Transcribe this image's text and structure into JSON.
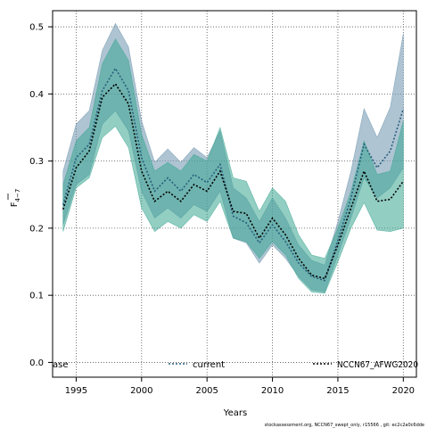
{
  "chart_data": {
    "type": "line",
    "xlabel": "Years",
    "ylabel_main": "F",
    "ylabel_sub": "4−7",
    "xlim": [
      1993.2,
      2021.0
    ],
    "ylim": [
      -0.022,
      0.524
    ],
    "xticks": [
      1995,
      2000,
      2005,
      2010,
      2015,
      2020
    ],
    "yticks": [
      0.0,
      0.1,
      0.2,
      0.3,
      0.4,
      0.5
    ],
    "xtick_labels": [
      "1995",
      "2000",
      "2005",
      "2010",
      "2015",
      "2020"
    ],
    "ytick_labels": [
      "0.0",
      "0.1",
      "0.2",
      "0.3",
      "0.4",
      "0.5"
    ],
    "grid": true,
    "legend_position": "bottom",
    "x": [
      1994,
      1995,
      1996,
      1997,
      1998,
      1999,
      2000,
      2001,
      2002,
      2003,
      2004,
      2005,
      2006,
      2007,
      2008,
      2009,
      2010,
      2011,
      2012,
      2013,
      2014,
      2015,
      2016,
      2017,
      2018,
      2019,
      2020
    ],
    "series": [
      {
        "name": "current",
        "color": "#6b93ad",
        "line_color": "#2a5e7d",
        "values": [
          0.235,
          0.305,
          0.325,
          0.405,
          0.438,
          0.405,
          0.305,
          0.255,
          0.275,
          0.255,
          0.28,
          0.268,
          0.295,
          0.218,
          0.208,
          0.178,
          0.205,
          0.18,
          0.148,
          0.128,
          0.122,
          0.182,
          0.245,
          0.325,
          0.29,
          0.315,
          0.378
        ],
        "lower": [
          0.205,
          0.265,
          0.28,
          0.355,
          0.375,
          0.345,
          0.255,
          0.215,
          0.23,
          0.215,
          0.235,
          0.225,
          0.255,
          0.185,
          0.178,
          0.148,
          0.175,
          0.155,
          0.128,
          0.108,
          0.105,
          0.16,
          0.215,
          0.275,
          0.245,
          0.26,
          0.29
        ],
        "upper": [
          0.285,
          0.355,
          0.375,
          0.465,
          0.505,
          0.47,
          0.36,
          0.298,
          0.318,
          0.298,
          0.32,
          0.305,
          0.345,
          0.26,
          0.245,
          0.21,
          0.245,
          0.215,
          0.175,
          0.152,
          0.145,
          0.21,
          0.285,
          0.378,
          0.335,
          0.38,
          0.49
        ]
      },
      {
        "name": "NCCN67_AFWG2020",
        "color": "#3aa591",
        "line_color": "#000000",
        "values": [
          0.228,
          0.29,
          0.315,
          0.395,
          0.415,
          0.385,
          0.285,
          0.24,
          0.255,
          0.24,
          0.265,
          0.255,
          0.285,
          0.225,
          0.222,
          0.185,
          0.215,
          0.19,
          0.155,
          0.13,
          0.125,
          0.175,
          0.23,
          0.285,
          0.24,
          0.243,
          0.27
        ],
        "lower": [
          0.195,
          0.26,
          0.275,
          0.335,
          0.352,
          0.32,
          0.23,
          0.195,
          0.21,
          0.2,
          0.22,
          0.21,
          0.24,
          0.185,
          0.18,
          0.155,
          0.18,
          0.16,
          0.125,
          0.105,
          0.103,
          0.15,
          0.2,
          0.238,
          0.197,
          0.195,
          0.2
        ],
        "upper": [
          0.265,
          0.33,
          0.35,
          0.445,
          0.482,
          0.45,
          0.34,
          0.285,
          0.298,
          0.285,
          0.31,
          0.3,
          0.35,
          0.275,
          0.27,
          0.225,
          0.26,
          0.24,
          0.19,
          0.16,
          0.155,
          0.2,
          0.255,
          0.33,
          0.28,
          0.285,
          0.36
        ]
      }
    ],
    "legend": {
      "base_label": "ase"
    },
    "footer": "stockassessment.org,  NCCN67_swept_only,  r15566 ,  git: ec2c2a0c6dde"
  }
}
